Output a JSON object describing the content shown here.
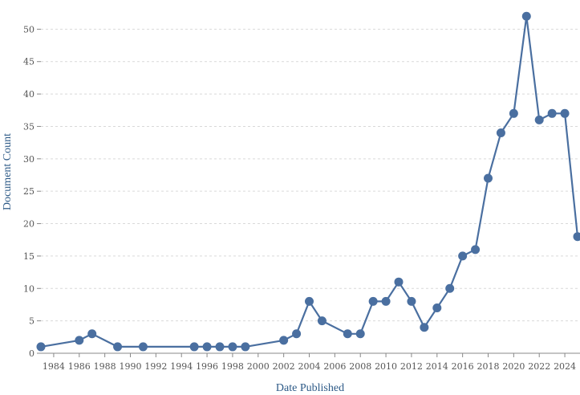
{
  "chart_data": {
    "type": "line",
    "title": "",
    "xlabel": "Date Published",
    "ylabel": "Document Count",
    "xlim": [
      1983,
      2025
    ],
    "ylim": [
      0,
      55
    ],
    "grid": true,
    "x_ticks": [
      "1984",
      "1986",
      "1988",
      "1990",
      "1992",
      "1994",
      "1996",
      "1998",
      "2000",
      "2002",
      "2004",
      "2006",
      "2008",
      "2010",
      "2012",
      "2014",
      "2016",
      "2018",
      "2020",
      "2022",
      "2024"
    ],
    "y_ticks": [
      "0",
      "5",
      "10",
      "15",
      "20",
      "25",
      "30",
      "35",
      "40",
      "45",
      "50",
      "55"
    ],
    "color": "#4a6fa0",
    "series": [
      {
        "x": [
          1983,
          1986,
          1987,
          1989,
          1991,
          1995,
          1996,
          1997,
          1998,
          1999,
          2002,
          2003,
          2004,
          2005,
          2007,
          2008,
          2009,
          2010,
          2011,
          2012,
          2013,
          2014,
          2015,
          2016,
          2017,
          2018,
          2019,
          2020,
          2021,
          2022,
          2023,
          2024,
          2025
        ],
        "values": [
          1,
          2,
          3,
          1,
          1,
          1,
          1,
          1,
          1,
          1,
          2,
          3,
          8,
          5,
          3,
          3,
          8,
          8,
          11,
          8,
          4,
          7,
          10,
          15,
          16,
          27,
          34,
          37,
          52,
          36,
          37,
          37,
          18
        ]
      }
    ]
  }
}
